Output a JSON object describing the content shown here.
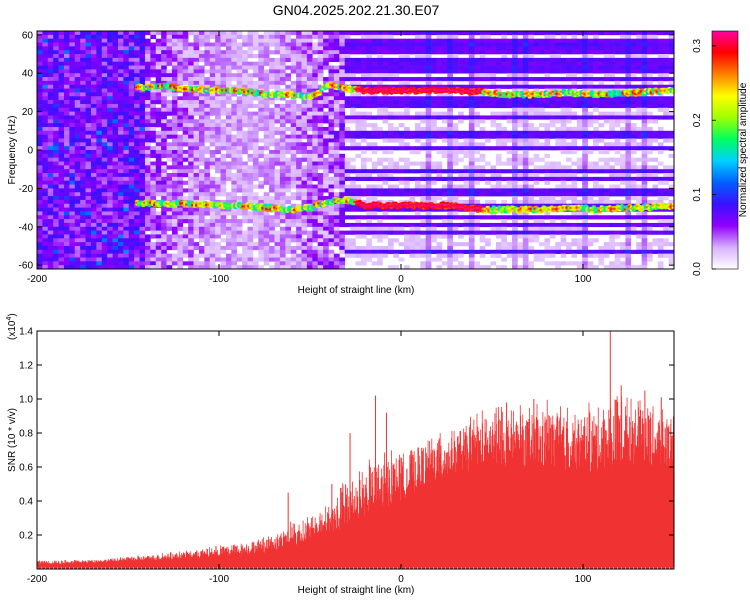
{
  "title": "GN04.2025.202.21.30.E07",
  "chart_data": [
    {
      "type": "heatmap",
      "xlabel": "Height of straight line (km)",
      "ylabel": "Frequency (Hz)",
      "xlim": [
        -200,
        150
      ],
      "ylim": [
        -62,
        62
      ],
      "x_ticks": [
        -200,
        -100,
        0,
        100
      ],
      "y_ticks": [
        -60,
        -40,
        -20,
        0,
        20,
        40,
        60
      ],
      "colorbar": {
        "label": "Normalized spectral amplitude",
        "range": [
          0.0,
          0.32
        ],
        "ticks": [
          0.0,
          0.1,
          0.2,
          0.3
        ],
        "colormap": [
          "#ffffff",
          "#d8b0ff",
          "#9000ff",
          "#3a10ff",
          "#0060ff",
          "#00d0ff",
          "#00ff60",
          "#a0ff00",
          "#ffff00",
          "#ff8000",
          "#ff0000",
          "#ff00a0"
        ]
      },
      "ridges": [
        {
          "name": "upper",
          "x": [
            -145,
            -130,
            -115,
            -100,
            -90,
            -75,
            -62,
            -50,
            -40,
            -30,
            -20,
            -10,
            0,
            10,
            20,
            30,
            45,
            60,
            75,
            90,
            110,
            130,
            150
          ],
          "y": [
            33,
            33,
            32,
            31,
            31,
            29,
            29,
            27,
            34,
            32,
            31,
            31,
            31,
            31,
            31,
            31,
            30,
            29,
            29,
            30,
            29,
            30,
            31
          ]
        },
        {
          "name": "lower",
          "x": [
            -145,
            -130,
            -115,
            -100,
            -90,
            -75,
            -62,
            -50,
            -40,
            -30,
            -20,
            -10,
            0,
            10,
            20,
            30,
            45,
            60,
            75,
            90,
            110,
            130,
            150
          ],
          "y": [
            -28,
            -28,
            -28,
            -29,
            -29,
            -30,
            -31,
            -30,
            -27,
            -26,
            -29,
            -29,
            -29,
            -29,
            -29,
            -29,
            -31,
            -31,
            -31,
            -30,
            -31,
            -30,
            -29
          ]
        }
      ]
    },
    {
      "type": "area",
      "xlabel": "Height of straight line (km)",
      "ylabel": "SNR (10 * v/v)",
      "y_multiplier": "(x10",
      "y_multiplier_exp": "4",
      "xlim": [
        -200,
        150
      ],
      "ylim": [
        0,
        1.4
      ],
      "x_ticks": [
        -200,
        -100,
        0,
        100
      ],
      "y_ticks": [
        0.2,
        0.4,
        0.6,
        0.8,
        1.0,
        1.2,
        1.4
      ],
      "color": "#f03232",
      "envelope": {
        "x": [
          -200,
          -180,
          -160,
          -140,
          -120,
          -100,
          -90,
          -80,
          -70,
          -60,
          -50,
          -40,
          -30,
          -20,
          -10,
          0,
          10,
          20,
          30,
          40,
          50,
          60,
          70,
          80,
          90,
          100,
          110,
          120,
          130,
          140,
          150
        ],
        "base": [
          0.03,
          0.03,
          0.04,
          0.05,
          0.06,
          0.07,
          0.08,
          0.09,
          0.1,
          0.13,
          0.16,
          0.18,
          0.22,
          0.28,
          0.35,
          0.4,
          0.47,
          0.52,
          0.56,
          0.58,
          0.6,
          0.6,
          0.6,
          0.6,
          0.58,
          0.56,
          0.58,
          0.6,
          0.62,
          0.6,
          0.58
        ],
        "peak": [
          0.05,
          0.05,
          0.06,
          0.08,
          0.1,
          0.13,
          0.15,
          0.17,
          0.2,
          0.27,
          0.3,
          0.36,
          0.55,
          0.6,
          0.65,
          0.68,
          0.72,
          0.8,
          0.82,
          0.86,
          0.92,
          0.94,
          0.9,
          0.95,
          0.9,
          0.92,
          0.96,
          1.05,
          1.0,
          0.95,
          0.92
        ]
      },
      "spikes": [
        {
          "x": -62,
          "y": 0.45
        },
        {
          "x": -38,
          "y": 0.5
        },
        {
          "x": -28,
          "y": 0.8
        },
        {
          "x": -14,
          "y": 1.02
        },
        {
          "x": -8,
          "y": 0.92
        },
        {
          "x": 38,
          "y": 0.85
        },
        {
          "x": 58,
          "y": 0.98
        },
        {
          "x": 73,
          "y": 1.0
        },
        {
          "x": 115,
          "y": 1.4
        },
        {
          "x": 121,
          "y": 1.08
        },
        {
          "x": 134,
          "y": 1.05
        },
        {
          "x": 143,
          "y": 1.01
        }
      ]
    }
  ]
}
